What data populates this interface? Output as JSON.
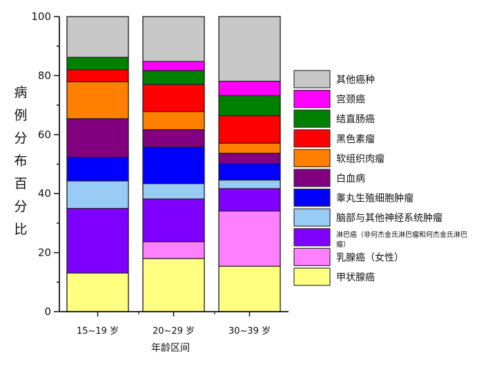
{
  "chart_data": {
    "type": "bar",
    "stacked": true,
    "title": "",
    "xlabel": "年龄区间",
    "ylabel": "病例分布百分比",
    "ylim": [
      0,
      100
    ],
    "yticks": [
      0,
      20,
      40,
      60,
      80,
      100
    ],
    "grid": false,
    "legend_position": "right",
    "categories": [
      "15~19 岁",
      "20~29 岁",
      "30~39 岁"
    ],
    "series": [
      {
        "name": "甲状腺癌",
        "color": "#ffff80",
        "values": [
          13.1,
          18.0,
          15.4
        ]
      },
      {
        "name": "乳腺癌（女性）",
        "color": "#ff80ff",
        "values": [
          0,
          5.7,
          18.7
        ]
      },
      {
        "name": "淋巴癌（非何杰金氏淋巴瘤和何杰金氏淋巴瘤）",
        "color": "#8000ff",
        "values": [
          21.9,
          14.5,
          7.6
        ]
      },
      {
        "name": "脑部与其他神经系统肿瘤",
        "color": "#99ccf5",
        "values": [
          9.3,
          5.2,
          2.9
        ]
      },
      {
        "name": "睾丸生殖细胞肿瘤",
        "color": "#0000ff",
        "values": [
          8.0,
          12.4,
          5.6
        ]
      },
      {
        "name": "白血病",
        "color": "#800080",
        "values": [
          13.1,
          5.9,
          3.5
        ]
      },
      {
        "name": "软组织肉瘤",
        "color": "#ff8000",
        "values": [
          12.5,
          6.1,
          3.4
        ]
      },
      {
        "name": "黑色素瘤",
        "color": "#ff0000",
        "values": [
          4.1,
          9.2,
          9.3
        ]
      },
      {
        "name": "结直肠癌",
        "color": "#008000",
        "values": [
          4.2,
          4.7,
          6.8
        ]
      },
      {
        "name": "宫颈癌",
        "color": "#ff00ff",
        "values": [
          0,
          3.1,
          4.9
        ]
      },
      {
        "name": "其他癌种",
        "color": "#c8c8c8",
        "values": [
          13.8,
          15.2,
          21.9
        ]
      }
    ]
  }
}
